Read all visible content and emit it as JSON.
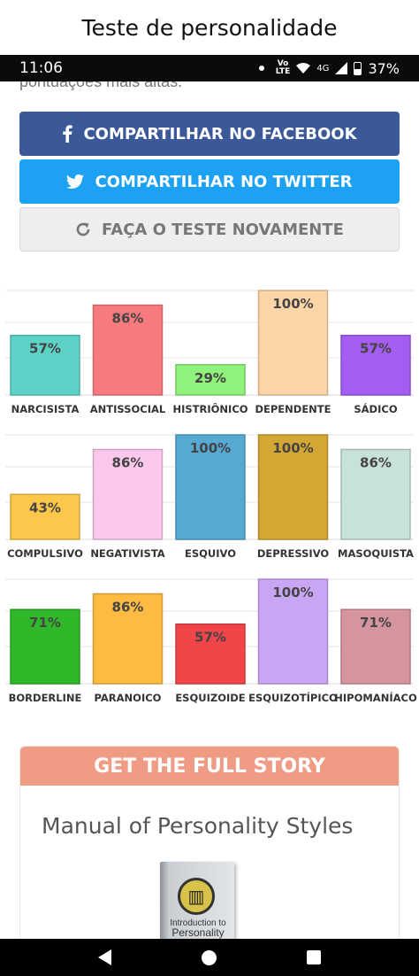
{
  "app": {
    "title": "Teste de personalidade"
  },
  "status_bar": {
    "time": "11:06",
    "volte_top": "Vo",
    "volte_bottom": "LTE",
    "network": "4G",
    "battery": "37%"
  },
  "page": {
    "cut_text": "pontuações mais altas."
  },
  "share": {
    "facebook_label": "COMPARTILHAR NO FACEBOOK",
    "twitter_label": "COMPARTILHAR NO TWITTER",
    "retake_label": "FAÇA O TESTE NOVAMENTE"
  },
  "chart_data": [
    {
      "type": "bar",
      "categories": [
        "NARCISISTA",
        "ANTISSOCIAL",
        "HISTRIÔNICO",
        "DEPENDENTE",
        "SÁDICO"
      ],
      "values": [
        57,
        86,
        29,
        100,
        57
      ],
      "value_labels": [
        "57%",
        "86%",
        "29%",
        "100%",
        "57%"
      ],
      "colors": [
        "#5dd3c8",
        "#f77b7e",
        "#8ff27a",
        "#fdd5a6",
        "#a45df0"
      ],
      "ylim": [
        0,
        100
      ]
    },
    {
      "type": "bar",
      "categories": [
        "COMPULSIVO",
        "NEGATIVISTA",
        "ESQUIVO",
        "DEPRESSIVO",
        "MASOQUISTA"
      ],
      "values": [
        43,
        86,
        100,
        100,
        86
      ],
      "value_labels": [
        "43%",
        "86%",
        "100%",
        "100%",
        "86%"
      ],
      "colors": [
        "#fcc74a",
        "#fbc8ec",
        "#56a9d2",
        "#d4a634",
        "#c9e2d8"
      ],
      "ylim": [
        0,
        100
      ]
    },
    {
      "type": "bar",
      "categories": [
        "BORDERLINE",
        "PARANOICO",
        "ESQUIZOIDE",
        "ESQUIZOTÍPICO",
        "HIPOMANÍACO"
      ],
      "values": [
        71,
        86,
        57,
        100,
        71
      ],
      "value_labels": [
        "71%",
        "86%",
        "57%",
        "100%",
        "71%"
      ],
      "colors": [
        "#2fb82a",
        "#fdbb42",
        "#f2454a",
        "#c9a6f3",
        "#d6949e"
      ],
      "ylim": [
        0,
        100
      ]
    }
  ],
  "story": {
    "header": "GET THE FULL STORY",
    "title": "Manual of Personality Styles",
    "book_text_line1": "Introduction to",
    "book_text_line2": "Personality"
  }
}
